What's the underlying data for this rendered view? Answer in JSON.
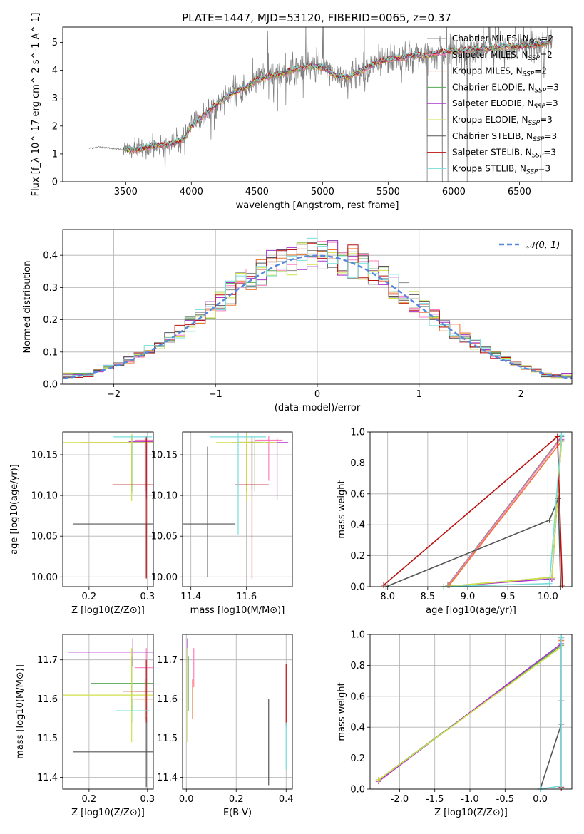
{
  "title": "PLATE=1447, MJD=53120, FIBERID=0065, z=0.37",
  "colors": {
    "Chabrier MILES": "#8c8c8c",
    "Salpeter MILES": "#ff7fbf",
    "Kroupa MILES": "#ee7733",
    "Chabrier ELODIE": "#55aa55",
    "Salpeter ELODIE": "#aa33cc",
    "Kroupa ELODIE": "#cfe04a",
    "Chabrier STELIB": "#555555",
    "Salpeter STELIB": "#bb1111",
    "Kroupa STELIB": "#77dddd",
    "gaussian": "#5588dd",
    "grid": "#b0b0b0"
  },
  "chart_data": [
    {
      "id": "spectrum",
      "type": "line",
      "title": "PLATE=1447, MJD=53120, FIBERID=0065, z=0.37",
      "xlabel": "wavelength [Angstrom, rest frame]",
      "ylabel": "Flux [f_λ 10^-17 erg cm^-2 s^-1 A^-1]",
      "xlim": [
        3020,
        6900
      ],
      "ylim": [
        0,
        5.55
      ],
      "xticks": [
        3500,
        4000,
        4500,
        5000,
        5500,
        6000,
        6500
      ],
      "yticks": [
        0,
        1,
        2,
        3,
        4,
        5
      ],
      "grid": false,
      "legend_position": "top-right",
      "continuum": {
        "x": [
          3220,
          3300,
          3400,
          3500,
          3600,
          3700,
          3800,
          3900,
          3950,
          4000,
          4100,
          4200,
          4300,
          4400,
          4500,
          4600,
          4700,
          4800,
          4900,
          5000,
          5100,
          5200,
          5300,
          5400,
          5500,
          5600,
          5700,
          5800,
          5900,
          6000,
          6100,
          6200,
          6300,
          6400,
          6500,
          6600,
          6750
        ],
        "y": [
          1.2,
          1.25,
          1.2,
          1.15,
          1.15,
          1.3,
          1.3,
          1.45,
          1.55,
          2.0,
          2.4,
          2.8,
          3.15,
          3.35,
          3.65,
          3.8,
          3.9,
          4.05,
          4.15,
          4.1,
          3.8,
          3.75,
          4.0,
          4.25,
          4.4,
          4.45,
          4.55,
          4.5,
          4.65,
          4.7,
          4.75,
          4.75,
          4.8,
          4.85,
          4.85,
          4.9,
          5.0
        ]
      },
      "model_start": 3480,
      "series": [
        {
          "name": "Chabrier MILES, N_SSP=2",
          "label_main": "Chabrier MILES, N",
          "label_sub": "SSP",
          "label_end": "=2"
        },
        {
          "name": "Salpeter MILES, N_SSP=2",
          "label_main": "Salpeter MILES, N",
          "label_sub": "SSP",
          "label_end": "=2"
        },
        {
          "name": "Kroupa MILES, N_SSP=2",
          "label_main": "Kroupa MILES, N",
          "label_sub": "SSP",
          "label_end": "=2"
        },
        {
          "name": "Chabrier ELODIE, N_SSP=3",
          "label_main": "Chabrier ELODIE, N",
          "label_sub": "SSP",
          "label_end": "=3"
        },
        {
          "name": "Salpeter ELODIE, N_SSP=3",
          "label_main": "Salpeter ELODIE, N",
          "label_sub": "SSP",
          "label_end": "=3"
        },
        {
          "name": "Kroupa ELODIE, N_SSP=3",
          "label_main": "Kroupa ELODIE, N",
          "label_sub": "SSP",
          "label_end": "=3"
        },
        {
          "name": "Chabrier STELIB, N_SSP=3",
          "label_main": "Chabrier STELIB, N",
          "label_sub": "SSP",
          "label_end": "=3"
        },
        {
          "name": "Salpeter STELIB, N_SSP=3",
          "label_main": "Salpeter STELIB, N",
          "label_sub": "SSP",
          "label_end": "=3"
        },
        {
          "name": "Kroupa STELIB, N_SSP=3",
          "label_main": "Kroupa STELIB, N",
          "label_sub": "SSP",
          "label_end": "=3"
        }
      ]
    },
    {
      "id": "residuals",
      "type": "line",
      "xlabel": "(data-model)/error",
      "ylabel": "Normed distribution",
      "xlim": [
        -2.5,
        2.5
      ],
      "ylim": [
        0,
        0.48
      ],
      "xticks": [
        -2,
        -1,
        0,
        1,
        2
      ],
      "yticks": [
        0.0,
        0.1,
        0.2,
        0.3,
        0.4
      ],
      "grid": true,
      "legend_position": "top-right",
      "legend_label": "𝒩(0, 1)",
      "bins": 50,
      "reference": "normal distribution, mean 0, sigma 1"
    },
    {
      "id": "age_vs_Z",
      "type": "scatter",
      "xlabel": "Z [log10(Z/Z⊙)]",
      "ylabel": "age  [log10(age/yr)]",
      "xlim": [
        0.155,
        0.31
      ],
      "ylim": [
        9.988,
        10.178
      ],
      "xticks": [
        0.2,
        0.3
      ],
      "yticks": [
        10.0,
        10.05,
        10.1,
        10.15
      ],
      "grid": true,
      "points": [
        {
          "series": "Chabrier MILES",
          "x": 0.298,
          "y": 10.167,
          "xerr": 0.01,
          "yerr": [
            0.07,
            0.005
          ]
        },
        {
          "series": "Salpeter MILES",
          "x": 0.298,
          "y": 10.168,
          "xerr": 0.02,
          "yerr": [
            0.06,
            0.005
          ]
        },
        {
          "series": "Kroupa MILES",
          "x": 0.296,
          "y": 10.165,
          "xerr": 0.11,
          "yerr": [
            0.06,
            0.005
          ]
        },
        {
          "series": "Chabrier ELODIE",
          "x": 0.273,
          "y": 10.165,
          "xerr": 0.02,
          "yerr": [
            0.06,
            0.008
          ]
        },
        {
          "series": "Salpeter ELODIE",
          "x": 0.298,
          "y": 10.166,
          "xerr": 0.03,
          "yerr": [
            0.07,
            0.006
          ]
        },
        {
          "series": "Kroupa ELODIE",
          "x": 0.273,
          "y": 10.165,
          "xerr": 0.12,
          "yerr": [
            0.072,
            0.01
          ]
        },
        {
          "series": "Chabrier STELIB",
          "x": 0.298,
          "y": 10.065,
          "xerr": 0.125,
          "yerr": [
            0.065,
            0.0
          ]
        },
        {
          "series": "Salpeter STELIB",
          "x": 0.298,
          "y": 10.113,
          "xerr": 0.058,
          "yerr": [
            0.115,
            0.06
          ]
        },
        {
          "series": "Kroupa STELIB",
          "x": 0.275,
          "y": 10.172,
          "xerr": 0.033,
          "yerr": [
            0.07,
            0.004
          ]
        }
      ]
    },
    {
      "id": "age_vs_mass",
      "type": "scatter",
      "xlabel": "mass [log10(M/M⊙)]",
      "ylabel": "",
      "xlim": [
        11.37,
        11.765
      ],
      "ylim": [
        9.988,
        10.178
      ],
      "xticks": [
        11.4,
        11.6
      ],
      "yticks": [
        10.0,
        10.05,
        10.1,
        10.15
      ],
      "grid": true,
      "points": [
        {
          "series": "Chabrier MILES",
          "x": 11.62,
          "y": 10.167,
          "xerr": 0.05,
          "yerr": [
            0.06,
            0.005
          ]
        },
        {
          "series": "Salpeter MILES",
          "x": 11.68,
          "y": 10.168,
          "xerr": 0.05,
          "yerr": [
            0.05,
            0.005
          ]
        },
        {
          "series": "Kroupa MILES",
          "x": 11.6,
          "y": 10.165,
          "xerr": 0.05,
          "yerr": [
            0.06,
            0.005
          ]
        },
        {
          "series": "Chabrier ELODIE",
          "x": 11.63,
          "y": 10.165,
          "xerr": 0.03,
          "yerr": [
            0.06,
            0.008
          ]
        },
        {
          "series": "Salpeter ELODIE",
          "x": 11.71,
          "y": 10.165,
          "xerr": 0.04,
          "yerr": [
            0.07,
            0.006
          ]
        },
        {
          "series": "Kroupa ELODIE",
          "x": 11.6,
          "y": 10.165,
          "xerr": 0.11,
          "yerr": [
            0.072,
            0.01
          ]
        },
        {
          "series": "Chabrier STELIB",
          "x": 11.46,
          "y": 10.065,
          "xerr": 0.1,
          "yerr": [
            0.065,
            0.095
          ]
        },
        {
          "series": "Salpeter STELIB",
          "x": 11.62,
          "y": 10.113,
          "xerr": 0.06,
          "yerr": [
            0.115,
            0.06
          ]
        },
        {
          "series": "Kroupa STELIB",
          "x": 11.57,
          "y": 10.172,
          "xerr": 0.1,
          "yerr": [
            0.12,
            0.004
          ]
        }
      ]
    },
    {
      "id": "mass_weight_vs_age",
      "type": "line",
      "xlabel": "age  [log10(age/yr)]",
      "ylabel": "mass weight",
      "xlim": [
        7.78,
        10.3
      ],
      "ylim": [
        0,
        1.0
      ],
      "xticks": [
        8.0,
        8.5,
        9.0,
        9.5,
        10.0
      ],
      "yticks": [
        0.0,
        0.2,
        0.4,
        0.6,
        0.8,
        1.0
      ],
      "grid": true,
      "series": [
        {
          "name": "Chabrier MILES",
          "x": [
            8.75,
            10.17
          ],
          "y": [
            0.01,
            0.97
          ]
        },
        {
          "name": "Salpeter MILES",
          "x": [
            8.76,
            10.17
          ],
          "y": [
            0.01,
            0.96
          ]
        },
        {
          "name": "Kroupa MILES",
          "x": [
            8.77,
            10.17
          ],
          "y": [
            0.01,
            0.94
          ]
        },
        {
          "name": "Chabrier ELODIE",
          "x": [
            8.7,
            10.05,
            10.17
          ],
          "y": [
            0.0,
            0.06,
            0.94
          ]
        },
        {
          "name": "Salpeter ELODIE",
          "x": [
            8.7,
            10.05,
            10.17
          ],
          "y": [
            0.0,
            0.05,
            0.95
          ]
        },
        {
          "name": "Kroupa ELODIE",
          "x": [
            8.7,
            10.05,
            10.17
          ],
          "y": [
            0.0,
            0.06,
            0.94
          ]
        },
        {
          "name": "Chabrier STELIB",
          "x": [
            7.98,
            10.02,
            10.13,
            10.16
          ],
          "y": [
            0.0,
            0.43,
            0.57,
            0.0
          ]
        },
        {
          "name": "Salpeter STELIB",
          "x": [
            7.95,
            10.12,
            10.18
          ],
          "y": [
            0.01,
            0.97,
            0.01
          ]
        },
        {
          "name": "Kroupa STELIB",
          "x": [
            8.7,
            10.02,
            10.17
          ],
          "y": [
            0.0,
            0.02,
            0.98
          ]
        }
      ]
    },
    {
      "id": "mass_vs_Z",
      "type": "scatter",
      "xlabel": "Z [log10(Z/Z⊙)]",
      "ylabel": "mass [log10(M/M⊙)]",
      "xlim": [
        0.155,
        0.31
      ],
      "ylim": [
        11.37,
        11.765
      ],
      "xticks": [
        0.2,
        0.3
      ],
      "yticks": [
        11.4,
        11.5,
        11.6,
        11.7
      ],
      "grid": true,
      "points": [
        {
          "series": "Chabrier MILES",
          "x": 0.298,
          "y": 11.62,
          "xerr": 0.02,
          "yerr": 0.06
        },
        {
          "series": "Salpeter MILES",
          "x": 0.298,
          "y": 11.68,
          "xerr": 0.02,
          "yerr": 0.05
        },
        {
          "series": "Kroupa MILES",
          "x": 0.296,
          "y": 11.6,
          "xerr": 0.02,
          "yerr": 0.05
        },
        {
          "series": "Chabrier ELODIE",
          "x": 0.273,
          "y": 11.64,
          "xerr": 0.07,
          "yerr": 0.07
        },
        {
          "series": "Salpeter ELODIE",
          "x": 0.275,
          "y": 11.72,
          "xerr": 0.11,
          "yerr": 0.035
        },
        {
          "series": "Kroupa ELODIE",
          "x": 0.273,
          "y": 11.61,
          "xerr": 0.12,
          "yerr": 0.12
        },
        {
          "series": "Chabrier STELIB",
          "x": 0.298,
          "y": 11.465,
          "xerr": 0.125,
          "yerr": 0.09
        },
        {
          "series": "Salpeter STELIB",
          "x": 0.298,
          "y": 11.62,
          "xerr": 0.04,
          "yerr": 0.08
        },
        {
          "series": "Kroupa STELIB",
          "x": 0.275,
          "y": 11.57,
          "xerr": 0.03,
          "yerr": 0.03
        }
      ]
    },
    {
      "id": "mass_vs_EBV",
      "type": "scatter",
      "xlabel": "E(B-V)",
      "ylabel": "",
      "xlim": [
        -0.015,
        0.425
      ],
      "ylim": [
        11.37,
        11.765
      ],
      "xticks": [
        0.0,
        0.2,
        0.4
      ],
      "yticks": [
        11.4,
        11.5,
        11.6,
        11.7
      ],
      "grid": true,
      "points": [
        {
          "series": "Chabrier MILES",
          "x": 0.005,
          "y": 11.62,
          "xerr": 0.0,
          "yerr": 0.06
        },
        {
          "series": "Salpeter MILES",
          "x": 0.03,
          "y": 11.68,
          "xerr": 0.0,
          "yerr": 0.05
        },
        {
          "series": "Kroupa MILES",
          "x": 0.025,
          "y": 11.6,
          "xerr": 0.0,
          "yerr": 0.05
        },
        {
          "series": "Chabrier ELODIE",
          "x": 0.008,
          "y": 11.64,
          "xerr": 0.0,
          "yerr": 0.07
        },
        {
          "series": "Salpeter ELODIE",
          "x": 0.005,
          "y": 11.72,
          "xerr": 0.0,
          "yerr": 0.035
        },
        {
          "series": "Kroupa ELODIE",
          "x": 0.005,
          "y": 11.61,
          "xerr": 0.0,
          "yerr": 0.12
        },
        {
          "series": "Chabrier STELIB",
          "x": 0.33,
          "y": 11.49,
          "xerr": 0.0,
          "yerr": 0.11
        },
        {
          "series": "Salpeter STELIB",
          "x": 0.4,
          "y": 11.61,
          "xerr": 0.0,
          "yerr": 0.08
        },
        {
          "series": "Kroupa STELIB",
          "x": 0.4,
          "y": 11.48,
          "xerr": 0.0,
          "yerr": 0.06
        }
      ]
    },
    {
      "id": "mass_weight_vs_Z",
      "type": "line",
      "xlabel": "Z [log10(Z/Z⊙)]",
      "ylabel": "mass weight",
      "xlim": [
        -2.42,
        0.45
      ],
      "ylim": [
        0,
        1.0
      ],
      "xticks": [
        -2.0,
        -1.5,
        -1.0,
        -0.5,
        0.0
      ],
      "yticks": [
        0.0,
        0.2,
        0.4,
        0.6,
        0.8,
        1.0
      ],
      "grid": true,
      "series": [
        {
          "name": "Chabrier MILES",
          "x": [
            0.3,
            0.3
          ],
          "y": [
            0.02,
            0.98
          ]
        },
        {
          "name": "Salpeter MILES",
          "x": [
            0.3,
            0.3
          ],
          "y": [
            0.02,
            0.97
          ]
        },
        {
          "name": "Kroupa MILES",
          "x": [
            0.3,
            0.3
          ],
          "y": [
            0.02,
            0.96
          ]
        },
        {
          "name": "Chabrier ELODIE",
          "x": [
            -2.3,
            0.3
          ],
          "y": [
            0.06,
            0.93
          ]
        },
        {
          "name": "Salpeter ELODIE",
          "x": [
            -2.3,
            0.3
          ],
          "y": [
            0.05,
            0.94
          ]
        },
        {
          "name": "Kroupa ELODIE",
          "x": [
            -2.3,
            0.3
          ],
          "y": [
            0.06,
            0.92
          ]
        },
        {
          "name": "Chabrier STELIB",
          "x": [
            0.0,
            0.3,
            0.3
          ],
          "y": [
            0.0,
            0.42,
            0.57
          ]
        },
        {
          "name": "Salpeter STELIB",
          "x": [
            0.3,
            0.3
          ],
          "y": [
            0.01,
            0.97
          ]
        },
        {
          "name": "Kroupa STELIB",
          "x": [
            0.0,
            0.3,
            0.3
          ],
          "y": [
            0.0,
            0.02,
            0.98
          ]
        }
      ]
    }
  ]
}
